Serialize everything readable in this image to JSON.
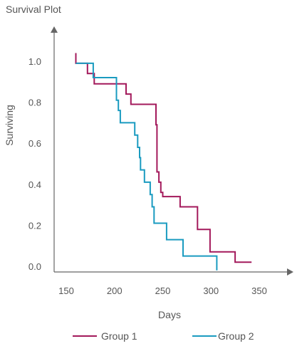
{
  "chart_data": {
    "type": "line",
    "title": "Survival Plot",
    "xlabel": "Days",
    "ylabel": "Surviving",
    "xlim": [
      150,
      350
    ],
    "ylim": [
      0.0,
      1.0
    ],
    "x_ticks": [
      "150",
      "200",
      "250",
      "300",
      "350"
    ],
    "y_ticks": [
      "0.0",
      "0.2",
      "0.4",
      "0.6",
      "0.8",
      "1.0"
    ],
    "grid": false,
    "legend_position": "bottom",
    "series": [
      {
        "name": "Group 1",
        "color": "#a3195b",
        "x": [
          160,
          160,
          172,
          172,
          179,
          179,
          212,
          212,
          217,
          217,
          243,
          243,
          244,
          244,
          246,
          246,
          248,
          248,
          250,
          250,
          268,
          268,
          286,
          286,
          299,
          299,
          325,
          325,
          342
        ],
        "y": [
          1.04,
          0.99,
          0.99,
          0.94,
          0.94,
          0.89,
          0.89,
          0.84,
          0.84,
          0.79,
          0.79,
          0.69,
          0.69,
          0.46,
          0.46,
          0.41,
          0.41,
          0.36,
          0.36,
          0.34,
          0.34,
          0.29,
          0.29,
          0.18,
          0.18,
          0.07,
          0.07,
          0.02,
          0.02
        ]
      },
      {
        "name": "Group 2",
        "color": "#1a9bc0",
        "x": [
          160,
          160,
          178,
          178,
          202,
          202,
          204,
          204,
          206,
          206,
          221,
          221,
          224,
          224,
          226,
          226,
          227,
          227,
          231,
          231,
          237,
          237,
          239,
          239,
          241,
          241,
          254,
          254,
          271,
          271,
          306,
          306
        ],
        "y": [
          0.99,
          0.99,
          0.99,
          0.92,
          0.92,
          0.81,
          0.81,
          0.76,
          0.76,
          0.7,
          0.7,
          0.64,
          0.64,
          0.58,
          0.58,
          0.53,
          0.53,
          0.47,
          0.47,
          0.41,
          0.41,
          0.35,
          0.35,
          0.29,
          0.29,
          0.21,
          0.21,
          0.13,
          0.13,
          0.05,
          0.05,
          -0.02
        ]
      }
    ]
  }
}
